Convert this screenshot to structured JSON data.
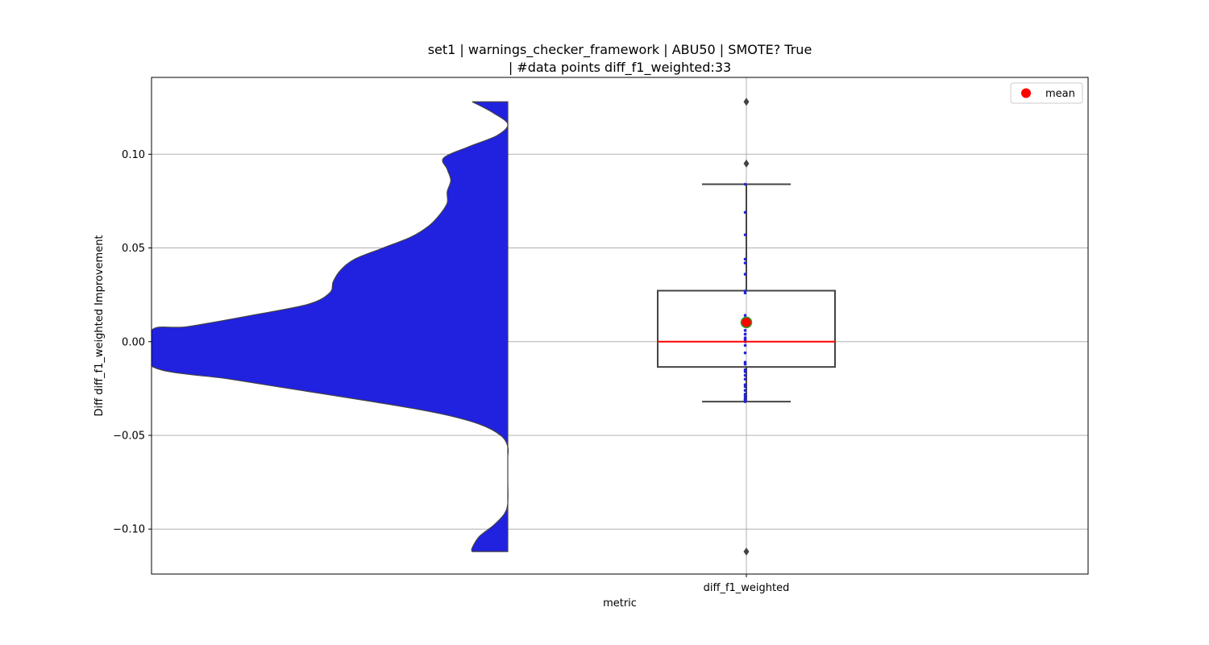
{
  "chart_data": {
    "type": "violin+box",
    "title_line1": "set1 | warnings_checker_framework | ABU50 | SMOTE? True",
    "title_line2": "| #data points diff_f1_weighted:33",
    "xlabel": "metric",
    "ylabel": "Diff diff_f1_weighted Improvement",
    "categories": [
      "diff_f1_weighted"
    ],
    "ylim": [
      -0.124,
      0.141
    ],
    "yticks": [
      {
        "value": 0.1,
        "label": "0.10"
      },
      {
        "value": 0.05,
        "label": "0.05"
      },
      {
        "value": 0.0,
        "label": "0.00"
      },
      {
        "value": -0.05,
        "label": "−0.05"
      },
      {
        "value": -0.1,
        "label": "−0.10"
      }
    ],
    "grid": true,
    "legend": {
      "position": "top-right",
      "entries": [
        {
          "label": "mean",
          "color": "#ff0000",
          "marker": "circle"
        }
      ]
    },
    "violin": {
      "color": "#2121e0",
      "edge_color": "#444444",
      "half": "left",
      "density_profile": [
        {
          "y": 0.128,
          "w": 0.1
        },
        {
          "y": 0.122,
          "w": 0.04
        },
        {
          "y": 0.116,
          "w": 0.0
        },
        {
          "y": 0.11,
          "w": 0.03
        },
        {
          "y": 0.104,
          "w": 0.11
        },
        {
          "y": 0.098,
          "w": 0.18
        },
        {
          "y": 0.092,
          "w": 0.17
        },
        {
          "y": 0.086,
          "w": 0.16
        },
        {
          "y": 0.08,
          "w": 0.17
        },
        {
          "y": 0.074,
          "w": 0.17
        },
        {
          "y": 0.068,
          "w": 0.19
        },
        {
          "y": 0.062,
          "w": 0.22
        },
        {
          "y": 0.056,
          "w": 0.27
        },
        {
          "y": 0.05,
          "w": 0.35
        },
        {
          "y": 0.044,
          "w": 0.43
        },
        {
          "y": 0.038,
          "w": 0.47
        },
        {
          "y": 0.032,
          "w": 0.49
        },
        {
          "y": 0.026,
          "w": 0.5
        },
        {
          "y": 0.02,
          "w": 0.56
        },
        {
          "y": 0.014,
          "w": 0.72
        },
        {
          "y": 0.008,
          "w": 0.9
        },
        {
          "y": 0.006,
          "w": 1.0
        },
        {
          "y": -0.013,
          "w": 1.0
        },
        {
          "y": -0.02,
          "w": 0.78
        },
        {
          "y": -0.026,
          "w": 0.58
        },
        {
          "y": -0.032,
          "w": 0.38
        },
        {
          "y": -0.038,
          "w": 0.2
        },
        {
          "y": -0.044,
          "w": 0.08
        },
        {
          "y": -0.05,
          "w": 0.02
        },
        {
          "y": -0.056,
          "w": 0.0
        },
        {
          "y": -0.062,
          "w": 0.0
        },
        {
          "y": -0.074,
          "w": 0.0
        },
        {
          "y": -0.086,
          "w": 0.0
        },
        {
          "y": -0.092,
          "w": 0.01
        },
        {
          "y": -0.098,
          "w": 0.04
        },
        {
          "y": -0.104,
          "w": 0.08
        },
        {
          "y": -0.11,
          "w": 0.1
        },
        {
          "y": -0.112,
          "w": 0.1
        }
      ]
    },
    "box": {
      "q1": -0.0135,
      "median": 0.0,
      "q3": 0.0272,
      "whisker_low": -0.032,
      "whisker_high": 0.084,
      "mean": 0.0103,
      "median_color": "#ff0000",
      "mean_color": "#ff0000",
      "mean_edge_color": "#2ca02c",
      "outliers": [
        0.128,
        0.095,
        -0.112
      ]
    },
    "strip_points": [
      0.084,
      0.069,
      0.057,
      0.044,
      0.042,
      0.036,
      0.027,
      0.026,
      0.014,
      0.012,
      0.009,
      0.006,
      0.004,
      0.002,
      0.001,
      0.0,
      -0.002,
      -0.006,
      -0.011,
      -0.012,
      -0.015,
      -0.016,
      -0.018,
      -0.02,
      -0.023,
      -0.024,
      -0.026,
      -0.028,
      -0.029,
      -0.03,
      -0.031,
      -0.031,
      -0.032
    ],
    "strip_color": "#2121e0"
  }
}
